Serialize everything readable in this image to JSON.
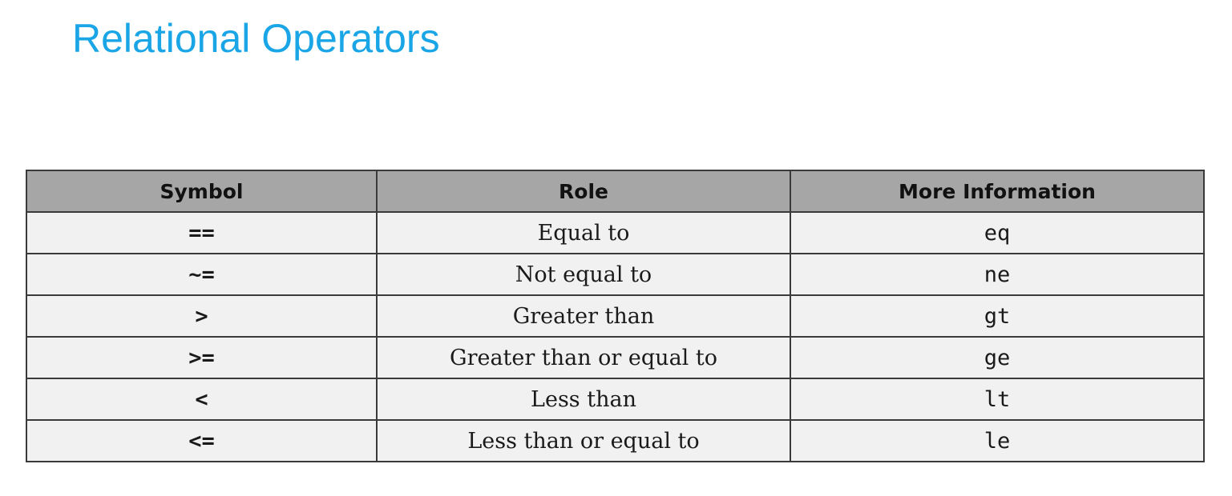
{
  "title": "Relational Operators",
  "table": {
    "headers": [
      "Symbol",
      "Role",
      "More Information"
    ],
    "rows": [
      {
        "symbol": "==",
        "role": "Equal to",
        "info": "eq"
      },
      {
        "symbol": "~=",
        "role": "Not equal to",
        "info": "ne"
      },
      {
        "symbol": ">",
        "role": "Greater than",
        "info": "gt"
      },
      {
        "symbol": ">=",
        "role": "Greater than or equal to",
        "info": "ge"
      },
      {
        "symbol": "<",
        "role": "Less than",
        "info": "lt"
      },
      {
        "symbol": "<=",
        "role": "Less than or equal to",
        "info": "le"
      }
    ]
  },
  "colors": {
    "title": "#1aa6e6",
    "header_bg": "#a6a6a6",
    "cell_bg": "#f1f1f1",
    "border": "#3a3a3a"
  }
}
